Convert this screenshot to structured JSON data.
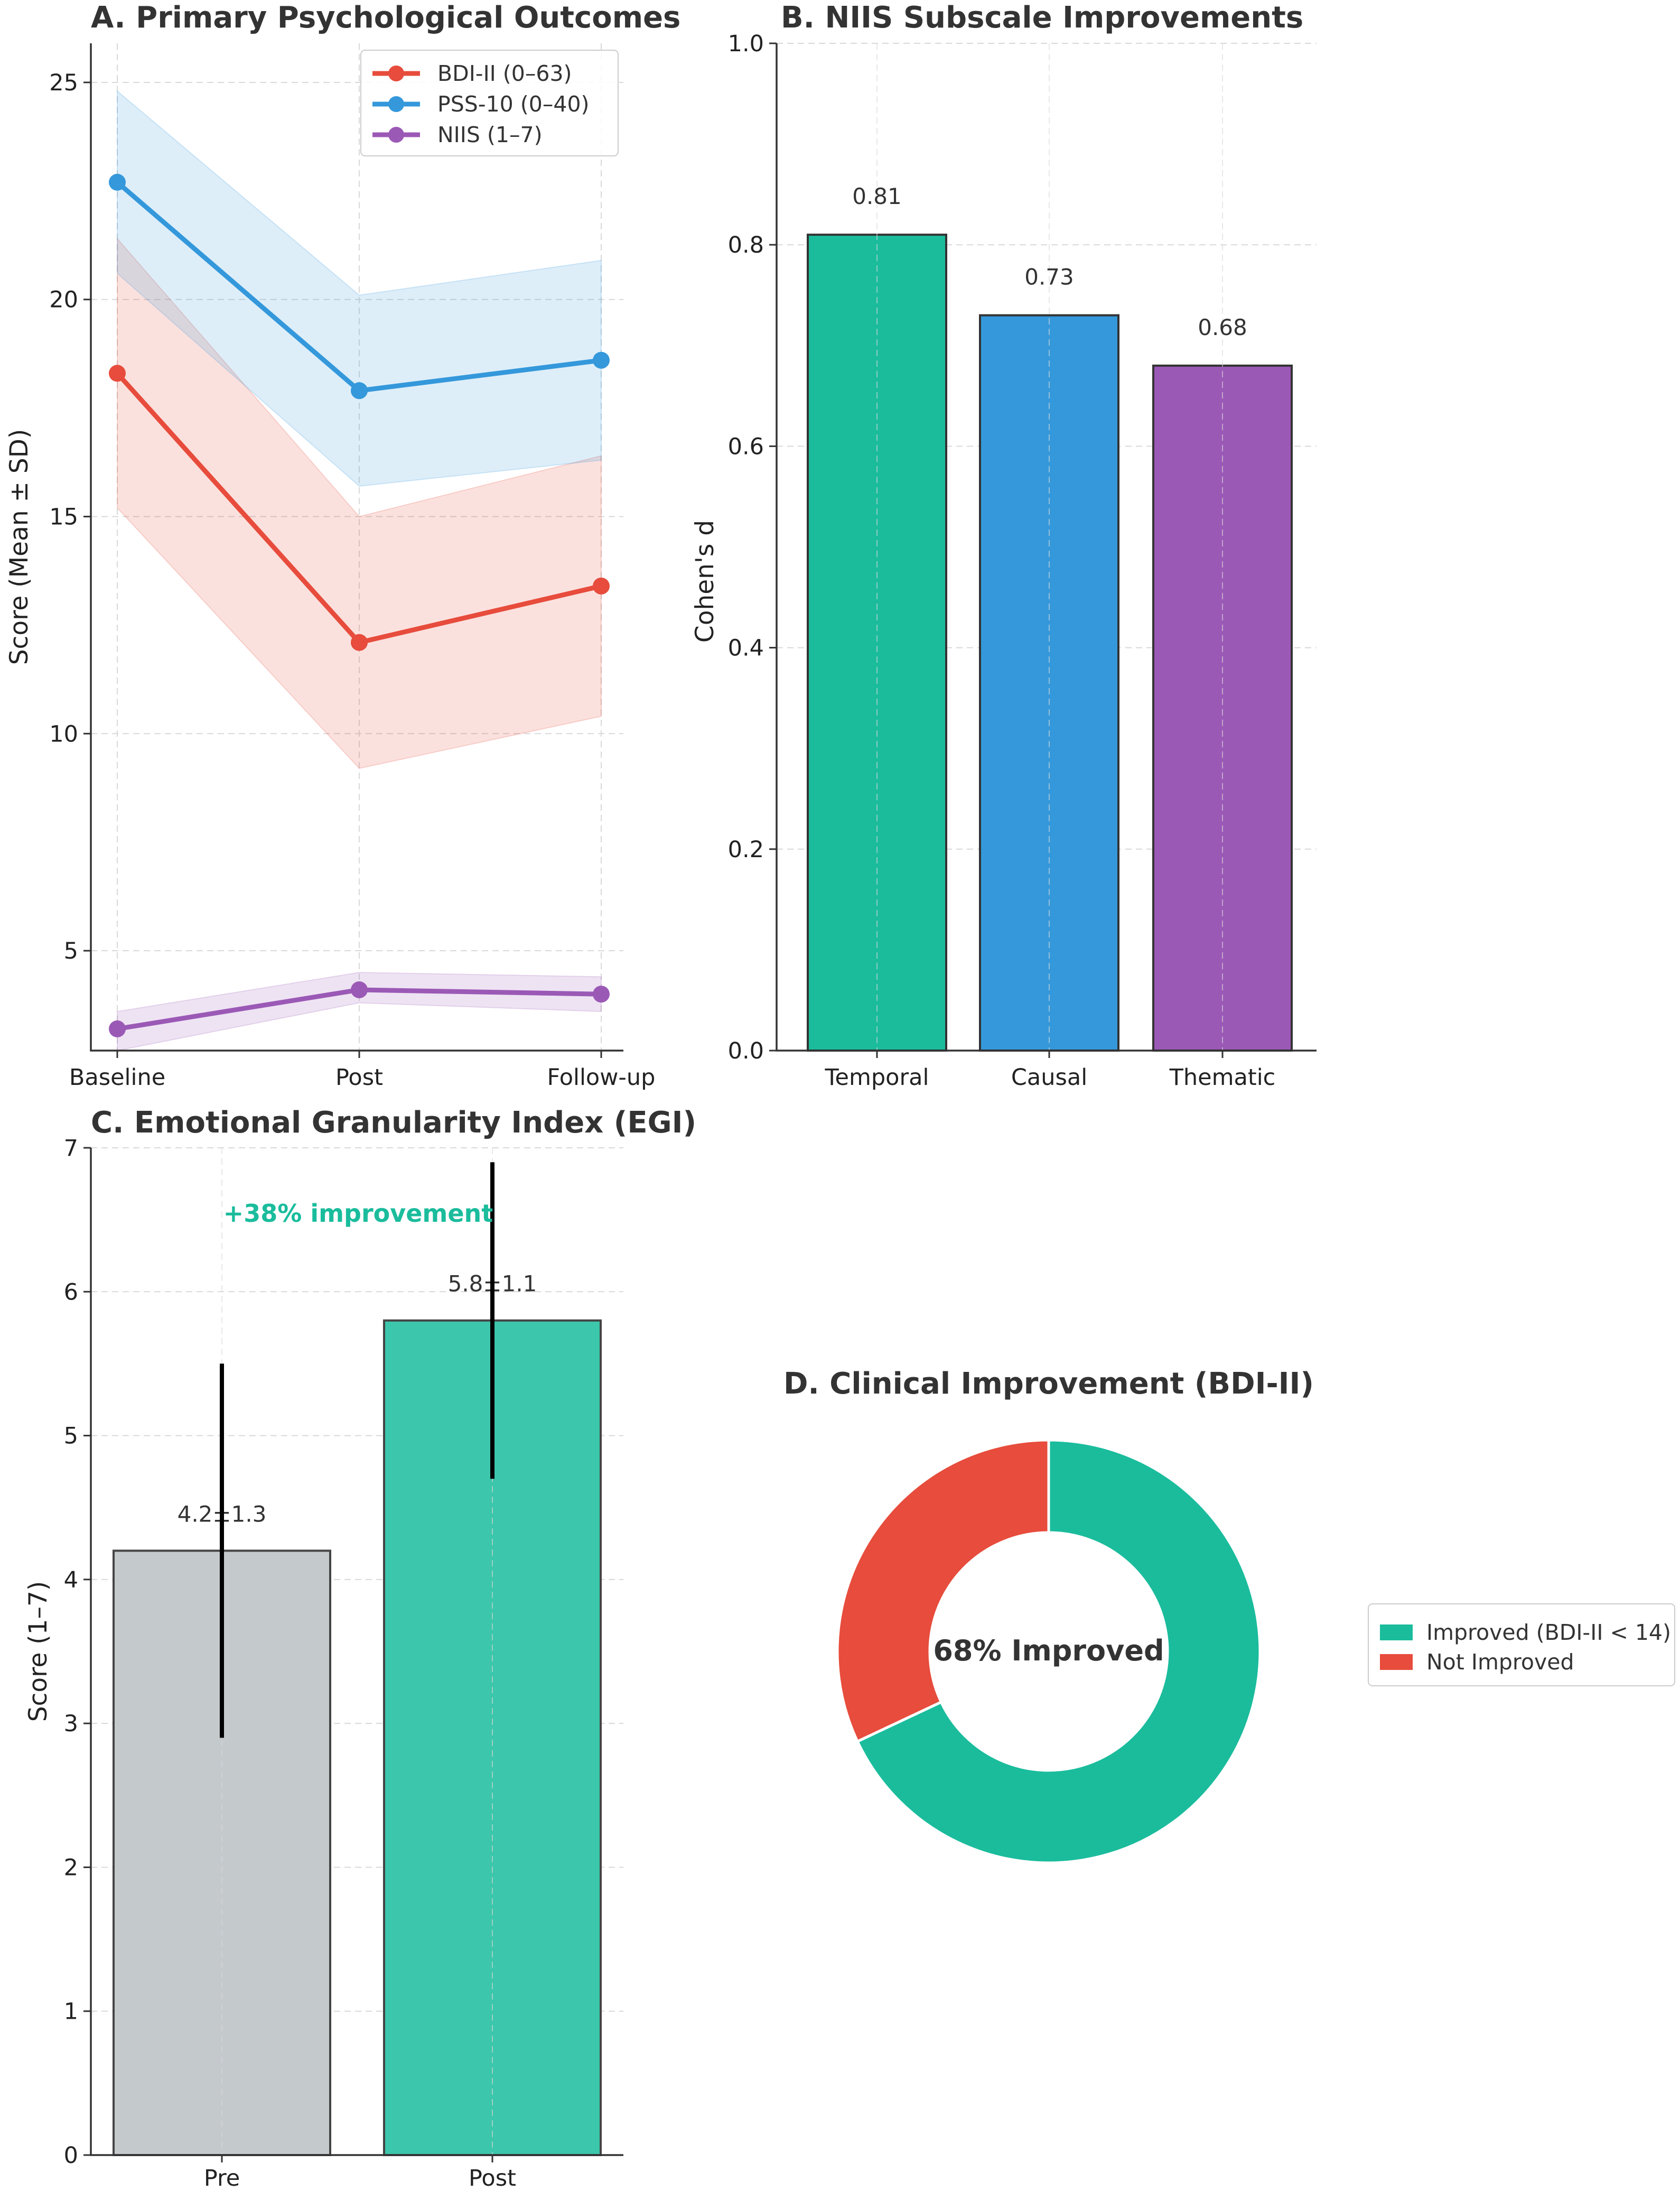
{
  "chart_data": [
    {
      "id": "A",
      "type": "line",
      "title": "A. Primary Psychological Outcomes",
      "xlabel": "",
      "ylabel": "Score (Mean ± SD)",
      "categories": [
        "Baseline",
        "Post",
        "Follow-up"
      ],
      "ylim": [
        2.7,
        25.9
      ],
      "yticks": [
        5,
        10,
        15,
        20,
        25
      ],
      "grid": true,
      "legend_position": "top-right",
      "series": [
        {
          "name": "BDI-II (0–63)",
          "color": "#e74c3c",
          "values": [
            18.3,
            12.1,
            13.4
          ],
          "lower": [
            15.2,
            9.2,
            10.4
          ],
          "upper": [
            21.4,
            15.0,
            16.4
          ]
        },
        {
          "name": "PSS-10 (0–40)",
          "color": "#3498db",
          "values": [
            22.7,
            17.9,
            18.6
          ],
          "lower": [
            20.6,
            15.7,
            16.3
          ],
          "upper": [
            24.8,
            20.1,
            20.9
          ]
        },
        {
          "name": "NIIS (1–7)",
          "color": "#9b59b6",
          "values": [
            3.2,
            4.1,
            4.0
          ],
          "lower": [
            2.7,
            3.8,
            3.6
          ],
          "upper": [
            3.6,
            4.5,
            4.4
          ]
        }
      ]
    },
    {
      "id": "B",
      "type": "bar",
      "title": "B. NIIS Subscale Improvements",
      "xlabel": "",
      "ylabel": "Cohen's d",
      "categories": [
        "Temporal",
        "Causal",
        "Thematic"
      ],
      "values": [
        0.81,
        0.73,
        0.68
      ],
      "value_labels": [
        "0.81",
        "0.73",
        "0.68"
      ],
      "colors": [
        "#1abc9c",
        "#3498db",
        "#9b59b6"
      ],
      "ylim": [
        0,
        1.0
      ],
      "yticks": [
        0.0,
        0.2,
        0.4,
        0.6,
        0.8,
        1.0
      ],
      "ytick_labels": [
        "0.0",
        "0.2",
        "0.4",
        "0.6",
        "0.8",
        "1.0"
      ],
      "grid": true
    },
    {
      "id": "C",
      "type": "bar",
      "title": "C. Emotional Granularity Index (EGI)",
      "xlabel": "",
      "ylabel": "Score (1–7)",
      "categories": [
        "Pre",
        "Post"
      ],
      "values": [
        4.2,
        5.8
      ],
      "errors": [
        1.3,
        1.1
      ],
      "value_labels": [
        "4.2±1.3",
        "5.8±1.1"
      ],
      "colors": [
        "#c4c9cc",
        "#3cc6ab"
      ],
      "ylim": [
        0,
        7
      ],
      "yticks": [
        0,
        1,
        2,
        3,
        4,
        5,
        6,
        7
      ],
      "annotation": "+38% improvement",
      "annotation_color": "#1abc9c",
      "grid": true
    },
    {
      "id": "D",
      "type": "pie",
      "title": "D. Clinical Improvement (BDI-II)",
      "labels": [
        "Improved (BDI-II < 14)",
        "Not Improved"
      ],
      "values": [
        68,
        32
      ],
      "colors": [
        "#1abc9c",
        "#e74c3c"
      ],
      "center_text": "68% Improved",
      "legend_position": "right"
    }
  ]
}
